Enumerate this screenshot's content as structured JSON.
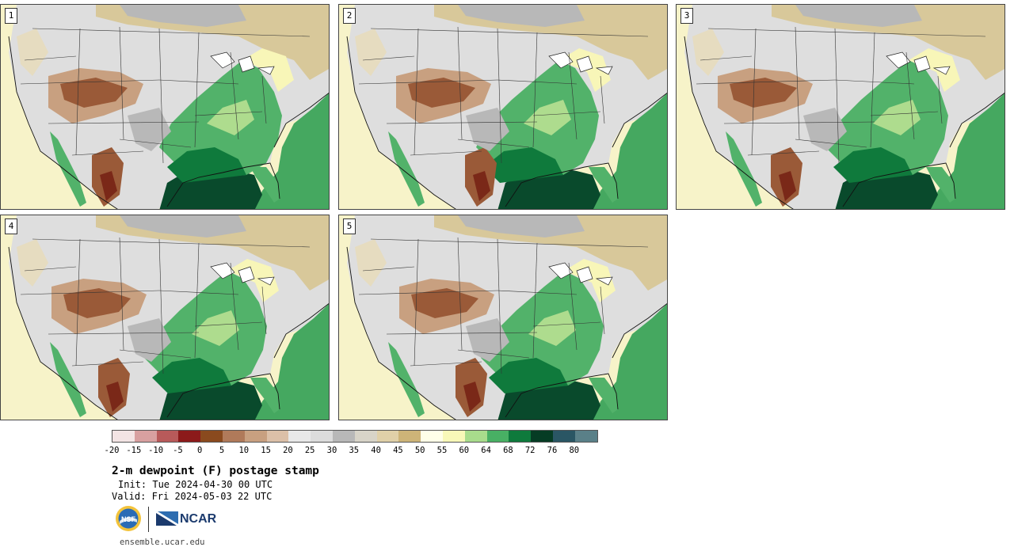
{
  "panels": [
    {
      "number": "1",
      "variant": 0
    },
    {
      "number": "2",
      "variant": 1
    },
    {
      "number": "3",
      "variant": 2
    },
    {
      "number": "4",
      "variant": 3
    },
    {
      "number": "5",
      "variant": 4
    }
  ],
  "colorbar": {
    "colors": [
      "#f3e4e4",
      "#d8a0a0",
      "#b85a5a",
      "#8c1a1a",
      "#8a4a1e",
      "#b07a5a",
      "#c8a080",
      "#dcc0a8",
      "#e8e8e8",
      "#dcdcdc",
      "#b8b8b8",
      "#d8d4c8",
      "#e0d0a8",
      "#cdb478",
      "#ffffe8",
      "#f8f8b8",
      "#a8dc8c",
      "#48b064",
      "#0e7a3c",
      "#063c24",
      "#2a5664",
      "#5a8088"
    ],
    "tick_labels": [
      "-20",
      "-15",
      "-10",
      "-5",
      "0",
      "5",
      "10",
      "15",
      "20",
      "25",
      "30",
      "35",
      "40",
      "45",
      "50",
      "55",
      "60",
      "64",
      "68",
      "72",
      "76",
      "80"
    ]
  },
  "info": {
    "title": "2-m dewpoint (F) postage stamp",
    "init": "Init: Tue 2024-04-30 00 UTC",
    "valid": "Valid: Fri 2024-05-03 22 UTC",
    "site": "ensemble.ucar.edu"
  },
  "logos": {
    "partner": "NCAR"
  },
  "map_colors": {
    "ocean_gulf": "#094a2c",
    "ocean_atlantic": "#45a860",
    "pacific": "#f7f3c9",
    "green_mid": "#0f7a3c",
    "green_light": "#52b26a",
    "green_pale": "#aedc8e",
    "yellow_pale": "#f8f6b8",
    "tan": "#d8c89a",
    "tan_light": "#e6dcc0",
    "gray_light": "#dedede",
    "gray_mid": "#b8b8b8",
    "brown_light": "#c8a080",
    "brown_dark": "#9a5a38",
    "red_brown": "#7a2818"
  }
}
